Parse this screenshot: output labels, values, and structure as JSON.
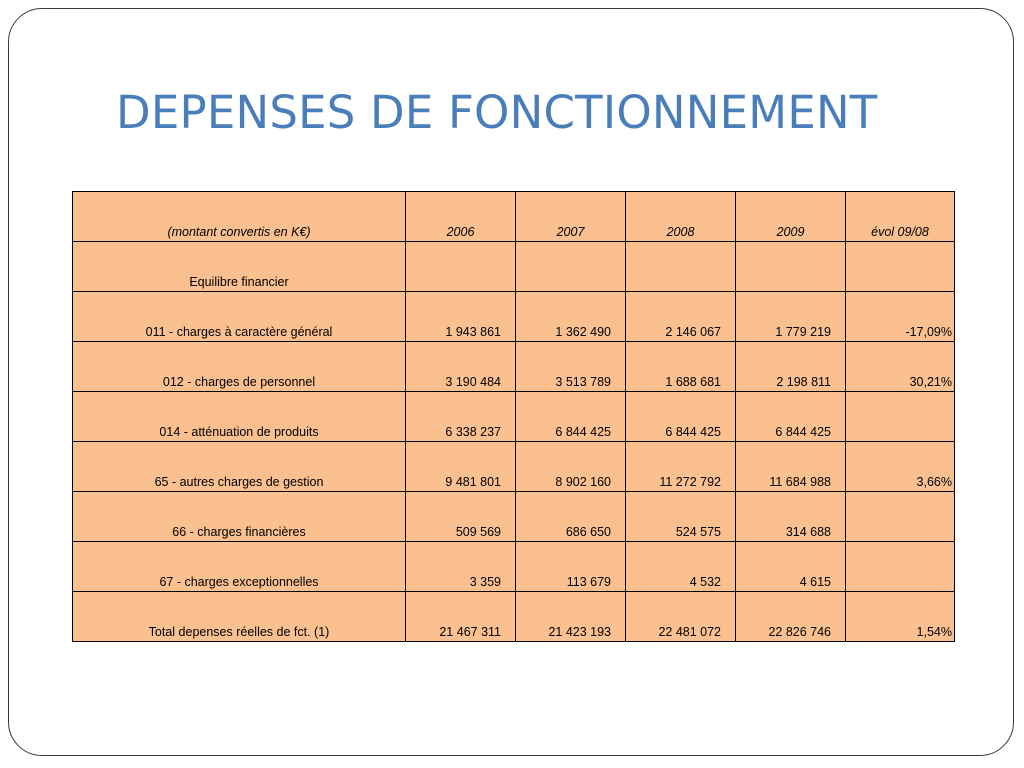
{
  "slide": {
    "title": "DEPENSES DE FONCTIONNEMENT"
  },
  "table": {
    "headers": [
      "(montant convertis en K€)",
      "2006",
      "2007",
      "2008",
      "2009",
      "évol 09/08"
    ],
    "rows": [
      [
        "Equilibre financier",
        "",
        "",
        "",
        "",
        ""
      ],
      [
        "011 - charges à caractère général",
        "1 943 861",
        "1 362 490",
        "2 146 067",
        "1 779 219",
        "-17,09%"
      ],
      [
        "012 - charges de personnel",
        "3 190 484",
        "3 513 789",
        "1 688 681",
        "2 198 811",
        "30,21%"
      ],
      [
        "014 - atténuation de produits",
        "6 338 237",
        "6 844 425",
        "6 844 425",
        "6 844 425",
        ""
      ],
      [
        "65 - autres charges de gestion",
        "9 481 801",
        "8 902 160",
        "11 272 792",
        "11 684 988",
        "3,66%"
      ],
      [
        "66 - charges financières",
        "509 569",
        "686 650",
        "524 575",
        "314 688",
        ""
      ],
      [
        "67 - charges exceptionnelles",
        "3 359",
        "113 679",
        "4 532",
        "4 615",
        ""
      ],
      [
        "Total depenses réelles de fct. (1)",
        "21 467 311",
        "21 423 193",
        "22 481 072",
        "22 826 746",
        "1,54%"
      ]
    ]
  },
  "colors": {
    "title": "#4a7ebb",
    "cell_fill": "#fac090",
    "border": "#000000"
  }
}
